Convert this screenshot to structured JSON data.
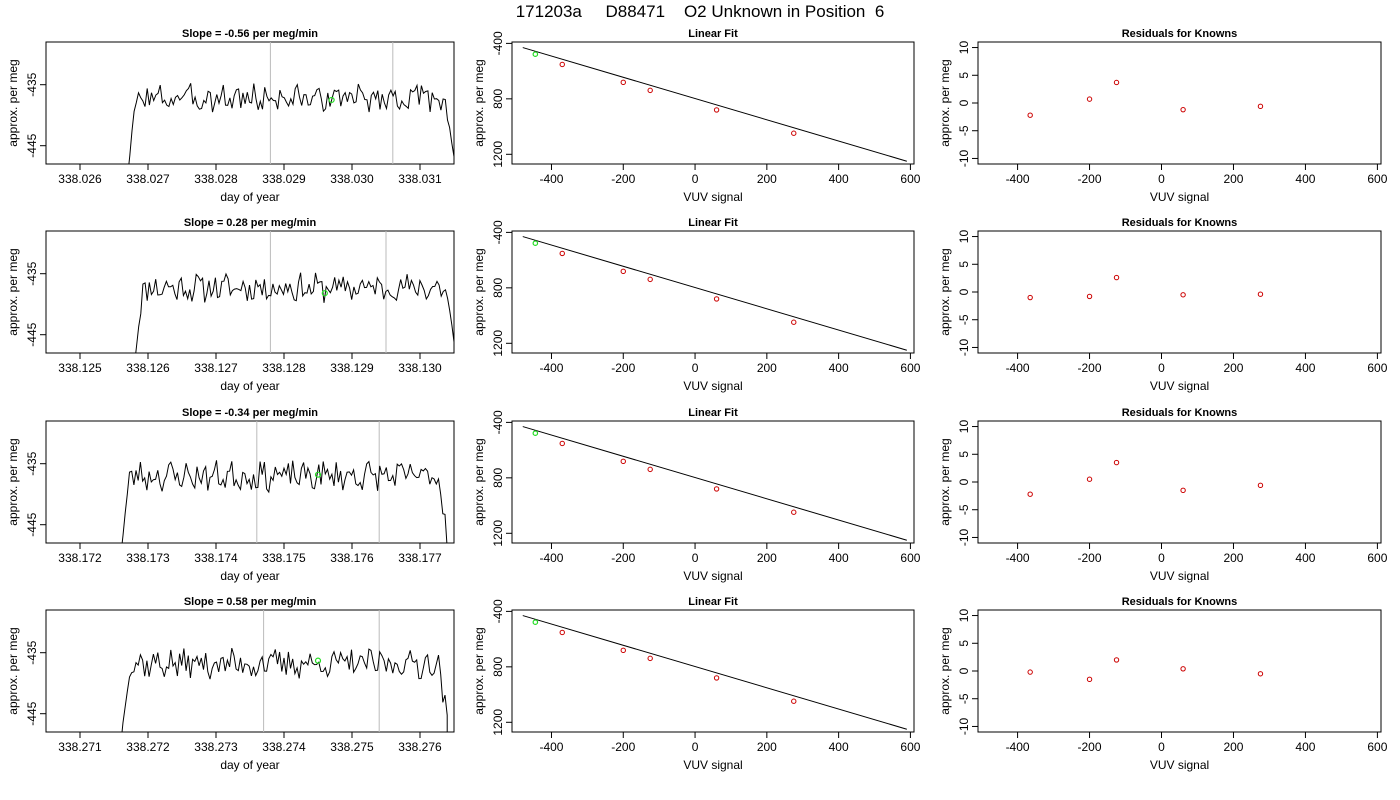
{
  "title": "171203a     D88471    O2 Unknown in Position  6",
  "colors": {
    "line": "#000000",
    "point_known": "#cc0000",
    "point_unknown": "#22dd22",
    "vline": "#bbbbbb"
  },
  "chart_data": [
    {
      "type": "line",
      "row": 0,
      "title": "Slope =  -0.56  per meg/min",
      "xlabel": "day of year",
      "ylabel": "approx. per meg",
      "xlim": [
        338.0255,
        338.0315
      ],
      "ylim": [
        -448,
        -428
      ],
      "xticks": [
        338.026,
        338.027,
        338.028,
        338.029,
        338.03,
        338.031
      ],
      "xtick_labels": [
        "338.026",
        "338.027",
        "338.028",
        "338.029",
        "338.030",
        "338.031"
      ],
      "yticks": [
        -445,
        -435
      ],
      "ytick_labels": [
        "-445",
        "-435"
      ],
      "vlines": [
        338.0288,
        338.0306
      ],
      "trace": {
        "start": 338.0267,
        "end": 338.0315,
        "mean": -437.2,
        "amp": 2.0,
        "seed": 3
      },
      "marker": {
        "x": 338.0297,
        "y": -437.5
      }
    },
    {
      "type": "scatter",
      "row": 0,
      "title": "Linear Fit",
      "xlabel": "VUV signal",
      "ylabel": "approx. per meg",
      "xlim": [
        -510,
        610
      ],
      "ylim": [
        -1270,
        -390
      ],
      "xticks": [
        -400,
        -200,
        0,
        200,
        400,
        600
      ],
      "xtick_labels": [
        "-400",
        "-200",
        "0",
        "200",
        "400",
        "600"
      ],
      "yticks": [
        -400,
        -800,
        -1200
      ],
      "ytick_labels": [
        "-400",
        "800",
        "1200"
      ],
      "fit": {
        "x": [
          -480,
          590
        ],
        "y": [
          -430,
          -1250
        ]
      },
      "known_x": [
        -370,
        -200,
        -125,
        60,
        275
      ],
      "known_y": [
        -552,
        -681,
        -739,
        -880,
        -1048
      ],
      "unknown": {
        "x": [
          -445
        ],
        "y": [
          -478
        ]
      }
    },
    {
      "type": "scatter",
      "row": 0,
      "title": "Residuals for Knowns",
      "xlabel": "VUV signal",
      "ylabel": "approx. per meg",
      "xlim": [
        -510,
        610
      ],
      "ylim": [
        -11,
        11
      ],
      "xticks": [
        -400,
        -200,
        0,
        200,
        400,
        600
      ],
      "xtick_labels": [
        "-400",
        "-200",
        "0",
        "200",
        "400",
        "600"
      ],
      "yticks": [
        -10,
        -5,
        0,
        5,
        10
      ],
      "ytick_labels": [
        "-10",
        "-5",
        "0",
        "5",
        "10"
      ],
      "x": [
        -365,
        -200,
        -125,
        60,
        275
      ],
      "y": [
        -2.2,
        0.7,
        3.7,
        -1.2,
        -0.6
      ]
    },
    {
      "type": "line",
      "row": 1,
      "title": "Slope =  0.28  per meg/min",
      "xlabel": "day of year",
      "ylabel": "approx. per meg",
      "xlim": [
        338.1245,
        338.1305
      ],
      "ylim": [
        -448,
        -428
      ],
      "xticks": [
        338.125,
        338.126,
        338.127,
        338.128,
        338.129,
        338.13
      ],
      "xtick_labels": [
        "338.125",
        "338.126",
        "338.127",
        "338.128",
        "338.129",
        "338.130"
      ],
      "yticks": [
        -445,
        -435
      ],
      "ytick_labels": [
        "-445",
        "-435"
      ],
      "vlines": [
        338.1278,
        338.1295
      ],
      "trace": {
        "start": 338.1258,
        "end": 338.1305,
        "mean": -437.3,
        "amp": 2.0,
        "seed": 11
      },
      "marker": {
        "x": 338.1286,
        "y": -438.2
      }
    },
    {
      "type": "scatter",
      "row": 1,
      "title": "Linear Fit",
      "xlabel": "VUV signal",
      "ylabel": "approx. per meg",
      "xlim": [
        -510,
        610
      ],
      "ylim": [
        -1270,
        -390
      ],
      "xticks": [
        -400,
        -200,
        0,
        200,
        400,
        600
      ],
      "xtick_labels": [
        "-400",
        "-200",
        "0",
        "200",
        "400",
        "600"
      ],
      "yticks": [
        -400,
        -800,
        -1200
      ],
      "ytick_labels": [
        "-400",
        "800",
        "1200"
      ],
      "fit": {
        "x": [
          -480,
          590
        ],
        "y": [
          -430,
          -1250
        ]
      },
      "known_x": [
        -370,
        -200,
        -125,
        60,
        275
      ],
      "known_y": [
        -552,
        -681,
        -739,
        -880,
        -1048
      ],
      "unknown": {
        "x": [
          -445
        ],
        "y": [
          -478
        ]
      }
    },
    {
      "type": "scatter",
      "row": 1,
      "title": "Residuals for Knowns",
      "xlabel": "VUV signal",
      "ylabel": "approx. per meg",
      "xlim": [
        -510,
        610
      ],
      "ylim": [
        -11,
        11
      ],
      "xticks": [
        -400,
        -200,
        0,
        200,
        400,
        600
      ],
      "xtick_labels": [
        "-400",
        "-200",
        "0",
        "200",
        "400",
        "600"
      ],
      "yticks": [
        -10,
        -5,
        0,
        5,
        10
      ],
      "ytick_labels": [
        "-10",
        "-5",
        "0",
        "5",
        "10"
      ],
      "x": [
        -365,
        -200,
        -125,
        60,
        275
      ],
      "y": [
        -1.0,
        -0.8,
        2.6,
        -0.5,
        -0.4
      ]
    },
    {
      "type": "line",
      "row": 2,
      "title": "Slope =  -0.34  per meg/min",
      "xlabel": "day of year",
      "ylabel": "approx. per meg",
      "xlim": [
        338.1715,
        338.1775
      ],
      "ylim": [
        -448,
        -428
      ],
      "xticks": [
        338.172,
        338.173,
        338.174,
        338.175,
        338.176,
        338.177
      ],
      "xtick_labels": [
        "338.172",
        "338.173",
        "338.174",
        "338.175",
        "338.176",
        "338.177"
      ],
      "yticks": [
        -445,
        -435
      ],
      "ytick_labels": [
        "-445",
        "-435"
      ],
      "vlines": [
        338.1746,
        338.1764
      ],
      "trace": {
        "start": 338.1726,
        "end": 338.1774,
        "mean": -437.0,
        "amp": 2.1,
        "seed": 23
      },
      "marker": {
        "x": 338.1755,
        "y": -436.8
      }
    },
    {
      "type": "scatter",
      "row": 2,
      "title": "Linear Fit",
      "xlabel": "VUV signal",
      "ylabel": "approx. per meg",
      "xlim": [
        -510,
        610
      ],
      "ylim": [
        -1270,
        -390
      ],
      "xticks": [
        -400,
        -200,
        0,
        200,
        400,
        600
      ],
      "xtick_labels": [
        "-400",
        "-200",
        "0",
        "200",
        "400",
        "600"
      ],
      "yticks": [
        -400,
        -800,
        -1200
      ],
      "ytick_labels": [
        "-400",
        "800",
        "1200"
      ],
      "fit": {
        "x": [
          -480,
          590
        ],
        "y": [
          -430,
          -1250
        ]
      },
      "known_x": [
        -370,
        -200,
        -125,
        60,
        275
      ],
      "known_y": [
        -552,
        -681,
        -739,
        -880,
        -1048
      ],
      "unknown": {
        "x": [
          -445
        ],
        "y": [
          -478
        ]
      }
    },
    {
      "type": "scatter",
      "row": 2,
      "title": "Residuals for Knowns",
      "xlabel": "VUV signal",
      "ylabel": "approx. per meg",
      "xlim": [
        -510,
        610
      ],
      "ylim": [
        -11,
        11
      ],
      "xticks": [
        -400,
        -200,
        0,
        200,
        400,
        600
      ],
      "xtick_labels": [
        "-400",
        "-200",
        "0",
        "200",
        "400",
        "600"
      ],
      "yticks": [
        -10,
        -5,
        0,
        5,
        10
      ],
      "ytick_labels": [
        "-10",
        "-5",
        "0",
        "5",
        "10"
      ],
      "x": [
        -365,
        -200,
        -125,
        60,
        275
      ],
      "y": [
        -2.2,
        0.5,
        3.5,
        -1.5,
        -0.6
      ]
    },
    {
      "type": "line",
      "row": 3,
      "title": "Slope =  0.58  per meg/min",
      "xlabel": "day of year",
      "ylabel": "approx. per meg",
      "xlim": [
        338.2705,
        338.2765
      ],
      "ylim": [
        -448,
        -428
      ],
      "xticks": [
        338.271,
        338.272,
        338.273,
        338.274,
        338.275,
        338.276
      ],
      "xtick_labels": [
        "338.271",
        "338.272",
        "338.273",
        "338.274",
        "338.275",
        "338.276"
      ],
      "yticks": [
        -445,
        -435
      ],
      "ytick_labels": [
        "-445",
        "-435"
      ],
      "vlines": [
        338.2737,
        338.2754
      ],
      "trace": {
        "start": 338.2716,
        "end": 338.2764,
        "mean": -436.8,
        "amp": 2.1,
        "seed": 37
      },
      "marker": {
        "x": 338.2745,
        "y": -436.3
      }
    },
    {
      "type": "scatter",
      "row": 3,
      "title": "Linear Fit",
      "xlabel": "VUV signal",
      "ylabel": "approx. per meg",
      "xlim": [
        -510,
        610
      ],
      "ylim": [
        -1270,
        -390
      ],
      "xticks": [
        -400,
        -200,
        0,
        200,
        400,
        600
      ],
      "xtick_labels": [
        "-400",
        "-200",
        "0",
        "200",
        "400",
        "600"
      ],
      "yticks": [
        -400,
        -800,
        -1200
      ],
      "ytick_labels": [
        "-400",
        "800",
        "1200"
      ],
      "fit": {
        "x": [
          -480,
          590
        ],
        "y": [
          -430,
          -1250
        ]
      },
      "known_x": [
        -370,
        -200,
        -125,
        60,
        275
      ],
      "known_y": [
        -552,
        -681,
        -739,
        -880,
        -1048
      ],
      "unknown": {
        "x": [
          -445
        ],
        "y": [
          -478
        ]
      }
    },
    {
      "type": "scatter",
      "row": 3,
      "title": "Residuals for Knowns",
      "xlabel": "VUV signal",
      "ylabel": "approx. per meg",
      "xlim": [
        -510,
        610
      ],
      "ylim": [
        -11,
        11
      ],
      "xticks": [
        -400,
        -200,
        0,
        200,
        400,
        600
      ],
      "xtick_labels": [
        "-400",
        "-200",
        "0",
        "200",
        "400",
        "600"
      ],
      "yticks": [
        -10,
        -5,
        0,
        5,
        10
      ],
      "ytick_labels": [
        "-10",
        "-5",
        "0",
        "5",
        "10"
      ],
      "x": [
        -365,
        -200,
        -125,
        60,
        275
      ],
      "y": [
        -0.2,
        -1.5,
        2.0,
        0.4,
        -0.5
      ]
    }
  ]
}
